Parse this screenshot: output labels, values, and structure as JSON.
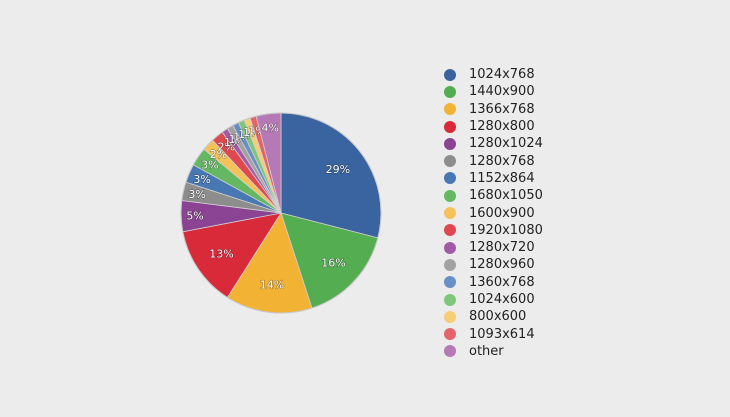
{
  "chart_data": {
    "type": "pie",
    "title": "",
    "legend_position": "right",
    "slices": [
      {
        "label": "1024x768",
        "value": 29,
        "display": "29%",
        "color": "#3a64a0"
      },
      {
        "label": "1440x900",
        "value": 16,
        "display": "16%",
        "color": "#55ad52"
      },
      {
        "label": "1366x768",
        "value": 14,
        "display": "14%",
        "color": "#f2b233"
      },
      {
        "label": "1280x800",
        "value": 13,
        "display": "13%",
        "color": "#d82a39"
      },
      {
        "label": "1280x1024",
        "value": 5,
        "display": "5%",
        "color": "#8b4393"
      },
      {
        "label": "1280x768",
        "value": 3,
        "display": "3%",
        "color": "#8d8d8d"
      },
      {
        "label": "1152x864",
        "value": 3,
        "display": "3%",
        "color": "#4878b4"
      },
      {
        "label": "1680x1050",
        "value": 3,
        "display": "3%",
        "color": "#64b862"
      },
      {
        "label": "1600x900",
        "value": 2,
        "display": "2%",
        "color": "#f5c25a"
      },
      {
        "label": "1920x1080",
        "value": 2,
        "display": "2%",
        "color": "#e0484f"
      },
      {
        "label": "1280x720",
        "value": 1,
        "display": "1%",
        "color": "#a35aa6"
      },
      {
        "label": "1280x960",
        "value": 1,
        "display": "1%",
        "color": "#a2a2a2"
      },
      {
        "label": "1360x768",
        "value": 1,
        "display": "1%",
        "color": "#6690c6"
      },
      {
        "label": "1024x600",
        "value": 1,
        "display": "1%",
        "color": "#7fc67b"
      },
      {
        "label": "800x600",
        "value": 1,
        "display": "1%",
        "color": "#f7cd78"
      },
      {
        "label": "1093x614",
        "value": 1,
        "display": "1%",
        "color": "#e3646b"
      },
      {
        "label": "other",
        "value": 4,
        "display": "4%",
        "color": "#b57ab6"
      }
    ]
  }
}
